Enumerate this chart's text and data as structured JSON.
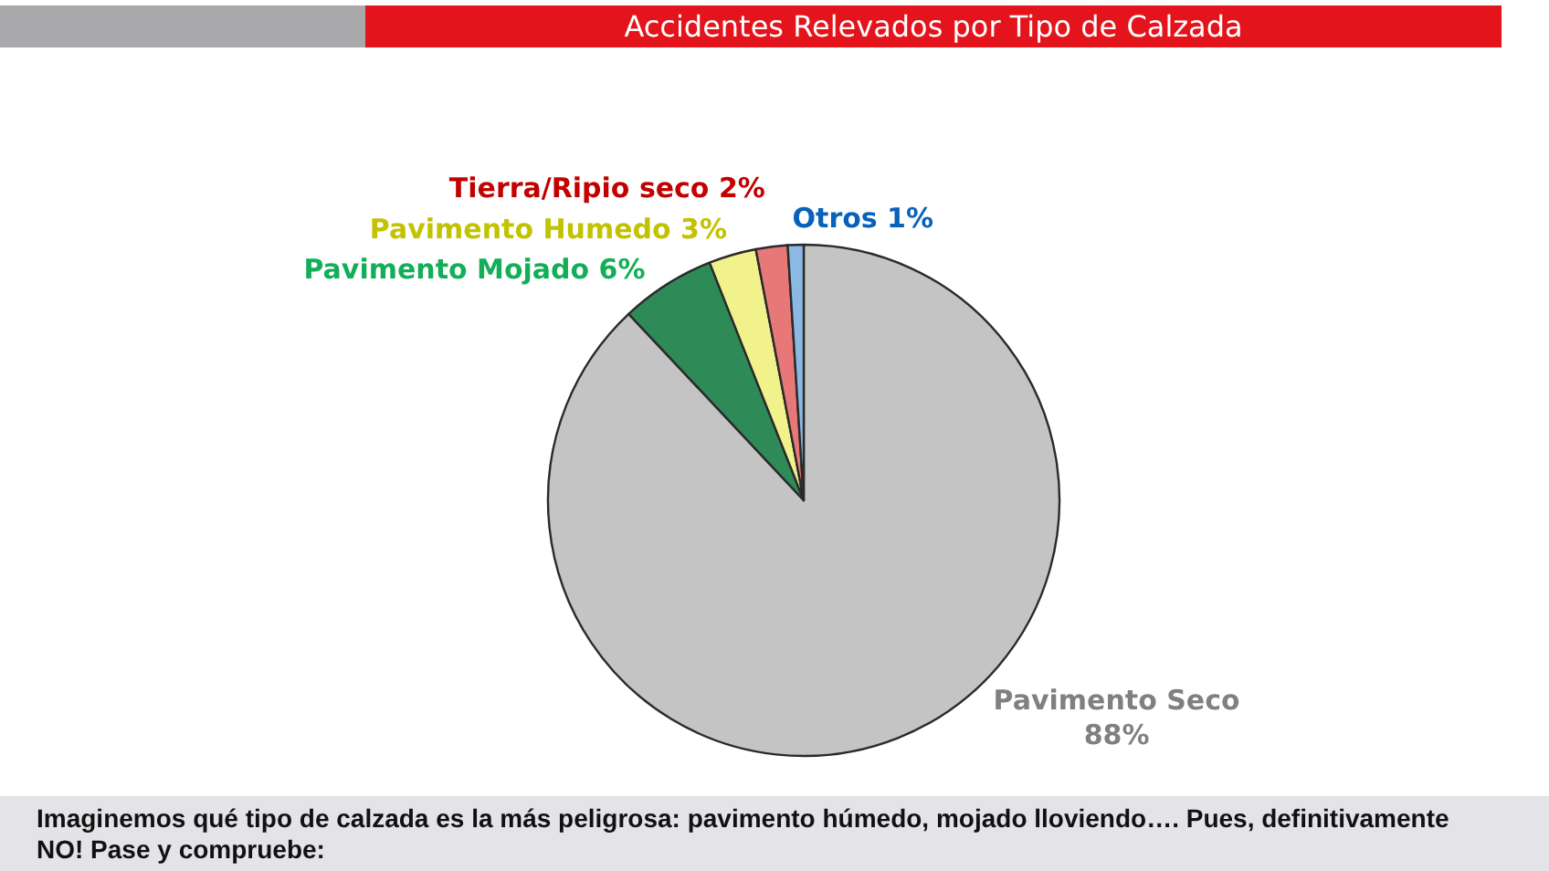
{
  "chart_data": {
    "type": "pie",
    "title": "Accidentes Relevados por Tipo de Calzada",
    "categories": [
      "Pavimento Seco",
      "Pavimento Mojado",
      "Pavimento Humedo",
      "Tierra/Ripio seco",
      "Otros"
    ],
    "values": [
      88,
      6,
      3,
      2,
      1
    ],
    "colors": [
      "#c4c4c4",
      "#2e8b57",
      "#f2f28c",
      "#e87878",
      "#8cb8e4"
    ],
    "value_labels": [
      "88%",
      "6%",
      "3%",
      "2%",
      "1%"
    ],
    "annotations": [
      "Imaginemos qué tipo de calzada es la más peligrosa: pavimento húmedo, mojado lloviendo…. Pues, definitivamente NO! Pase y compruebe:"
    ]
  }
}
